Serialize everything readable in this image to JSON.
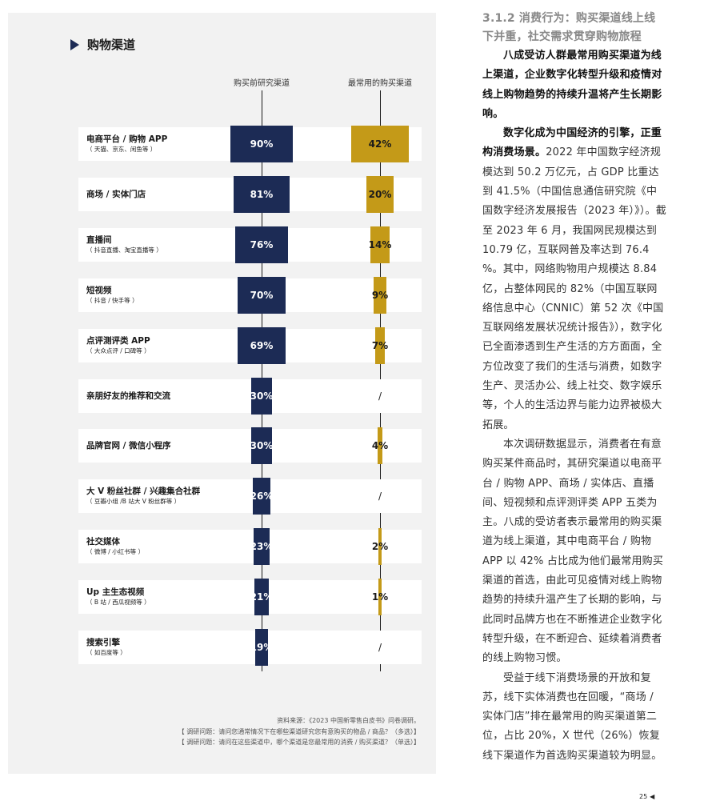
{
  "panel": {
    "title": "购物渠道",
    "col_research": "购买前研究渠道",
    "col_common": "最常用的购买渠道",
    "source": "资料来源：《2023 中国新零售白皮书》问卷调研。",
    "q1": "【 调研问题：请问您通常情况下在哪些渠道研究您有意购买的物品 / 商品？（多选）】",
    "q2": "【 调研问题：请问在这些渠道中，哪个渠道是您最常用的消费 / 购买渠道？（单选）】"
  },
  "chart_data": {
    "type": "bar",
    "categories": [
      "电商平台 / 购物 APP",
      "商场 / 实体门店",
      "直播间",
      "短视频",
      "点评测评类 APP",
      "亲朋好友的推荐和交流",
      "品牌官网 / 微信小程序",
      "大 V 粉丝社群 / 兴趣集合社群",
      "社交媒体",
      "Up 主生态视频",
      "搜索引擎"
    ],
    "subtitles": [
      "（ 天猫、京东、闲鱼等 ）",
      "",
      "（ 抖音直播、淘宝直播等 ）",
      "（ 抖音 / 快手等 ）",
      "（ 大众点评 / 口碑等 ）",
      "",
      "",
      "（ 豆瓣小组 /B 站大 V 粉丝群等 ）",
      "（ 微博 / 小红书等 ）",
      "（ B 站 / 西瓜视频等 ）",
      "（ 如百度等 ）"
    ],
    "series": [
      {
        "name": "购买前研究渠道",
        "values": [
          90,
          81,
          76,
          70,
          69,
          30,
          30,
          26,
          23,
          21,
          19
        ],
        "labels": [
          "90%",
          "81%",
          "76%",
          "70%",
          "69%",
          "30%",
          "30%",
          "26%",
          "23%",
          "21%",
          "19%"
        ],
        "color": "#1c2b55"
      },
      {
        "name": "最常用的购买渠道",
        "values": [
          42,
          20,
          14,
          9,
          7,
          null,
          4,
          null,
          2,
          1,
          null
        ],
        "labels": [
          "42%",
          "20%",
          "14%",
          "9%",
          "7%",
          "/",
          "4%",
          "/",
          "2%",
          "1%",
          "/"
        ],
        "color": "#c49a18"
      }
    ]
  },
  "article": {
    "heading": "3.1.2 消费行为：购买渠道线上线下并重，社交需求贯穿购物旅程",
    "lead": "八成受访人群最常用购买渠道为线上渠道，企业数字化转型升级和疫情对线上购物趋势的持续升温将产生长期影响。",
    "p1_bold": "数字化成为中国经济的引擎，正重构消费场景。",
    "p1": "2022 年中国数字经济规模达到 50.2 万亿元，占 GDP 比重达到 41.5%（中国信息通信研究院《中国数字经济发展报告（2023 年）》）。截至 2023 年 6 月，我国网民规模达到 10.79 亿，互联网普及率达到 76.4 %。其中，网络购物用户规模达 8.84 亿，占整体网民的 82%（中国互联网络信息中心（CNNIC）第 52 次《中国互联网络发展状况统计报告》），数字化已全面渗透到生产生活的方方面面，全方位改变了我们的生活与消费，如数字生产、灵活办公、线上社交、数字娱乐等，个人的生活边界与能力边界被极大拓展。",
    "p2": "本次调研数据显示，消费者在有意购买某件商品时，其研究渠道以电商平台 / 购物 APP、商场 / 实体店、直播间、短视频和点评测评类 APP 五类为主。八成的受访者表示最常用的购买渠道为线上渠道，其中电商平台 / 购物 APP 以 42% 占比成为他们最常用购买渠道的首选，由此可见疫情对线上购物趋势的持续升温产生了长期的影响，与此同时品牌方也在不断推进企业数字化转型升级，在不断迎合、延续着消费者的线上购物习惯。",
    "p3": "受益于线下消费场景的开放和复苏，线下实体消费也在回暖，“商场 / 实体门店”排在最常用的购买渠道第二位，占比 20%，X 世代（26%）恢复线下渠道作为首选购买渠道较为明显。"
  },
  "page": {
    "number": "25",
    "marker": "◀"
  }
}
